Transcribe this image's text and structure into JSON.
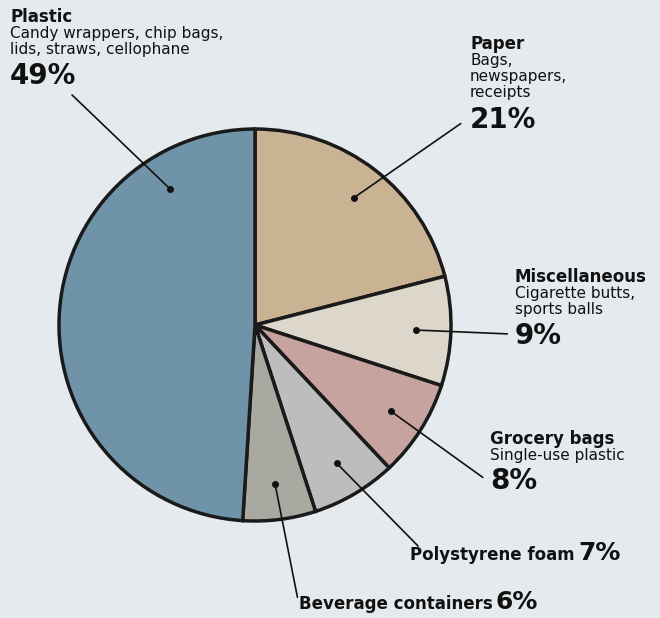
{
  "chart_data": {
    "type": "pie",
    "categories": [
      "Paper",
      "Miscellaneous",
      "Grocery bags",
      "Polystyrene foam",
      "Beverage containers",
      "Plastic"
    ],
    "descriptions": [
      "Bags, newspapers, receipts",
      "Cigarette butts, sports balls",
      "Single-use plastic",
      null,
      null,
      "Candy wrappers, chip bags, lids, straws, cellophane"
    ],
    "values": [
      21,
      9,
      8,
      7,
      6,
      49
    ],
    "value_labels": [
      "21%",
      "9%",
      "8%",
      "7%",
      "6%",
      "49%"
    ],
    "colors": [
      "#c9b393",
      "#dcd6cb",
      "#c7a3a0",
      "#bdbdbd",
      "#a9a9a2",
      "#6f93a8"
    ]
  }
}
